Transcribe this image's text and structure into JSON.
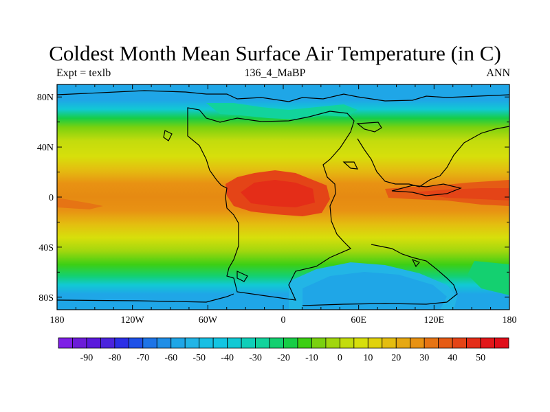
{
  "chart_data": {
    "type": "heatmap",
    "title": "Coldest Month Mean Surface Air Temperature (in C)",
    "subtitle_left": "Expt = texlb",
    "subtitle_center": "136_4_MaBP",
    "subtitle_right": "ANN",
    "x_ticks": [
      "180",
      "120W",
      "60W",
      "0",
      "60E",
      "120E",
      "180"
    ],
    "x_tick_values": [
      -180,
      -120,
      -60,
      0,
      60,
      120,
      180
    ],
    "y_ticks": [
      "80N",
      "40N",
      "0",
      "40S",
      "80S"
    ],
    "y_tick_values": [
      80,
      40,
      0,
      -40,
      -80
    ],
    "xlim": [
      -180,
      180
    ],
    "ylim": [
      -90,
      90
    ],
    "colorbar_labels": [
      "-90",
      "-80",
      "-70",
      "-60",
      "-50",
      "-40",
      "-30",
      "-20",
      "-10",
      "0",
      "10",
      "20",
      "30",
      "40",
      "50"
    ],
    "colorbar_label_values": [
      -90,
      -80,
      -70,
      -60,
      -50,
      -40,
      -30,
      -20,
      -10,
      0,
      10,
      20,
      30,
      40,
      50
    ],
    "colorbar_range": [
      -100,
      60
    ],
    "colorbar_step": 5,
    "colorbar_colors": [
      "#7e1fe6",
      "#6c1cd8",
      "#5a19dc",
      "#4b24dd",
      "#2b2fe6",
      "#1e51e8",
      "#1d74e7",
      "#1f8ee7",
      "#1fa6e7",
      "#22b5e6",
      "#17bfe3",
      "#13c5e2",
      "#11c9d4",
      "#10cfb9",
      "#12d39c",
      "#14d070",
      "#17cd46",
      "#3ccf14",
      "#7ad10f",
      "#a1d70e",
      "#c3dc0d",
      "#d7df0b",
      "#e1d20d",
      "#e4bd10",
      "#e6a812",
      "#e89213",
      "#e67414",
      "#e55b15",
      "#e44417",
      "#e42d18",
      "#e2171a",
      "#e00e1a"
    ]
  }
}
